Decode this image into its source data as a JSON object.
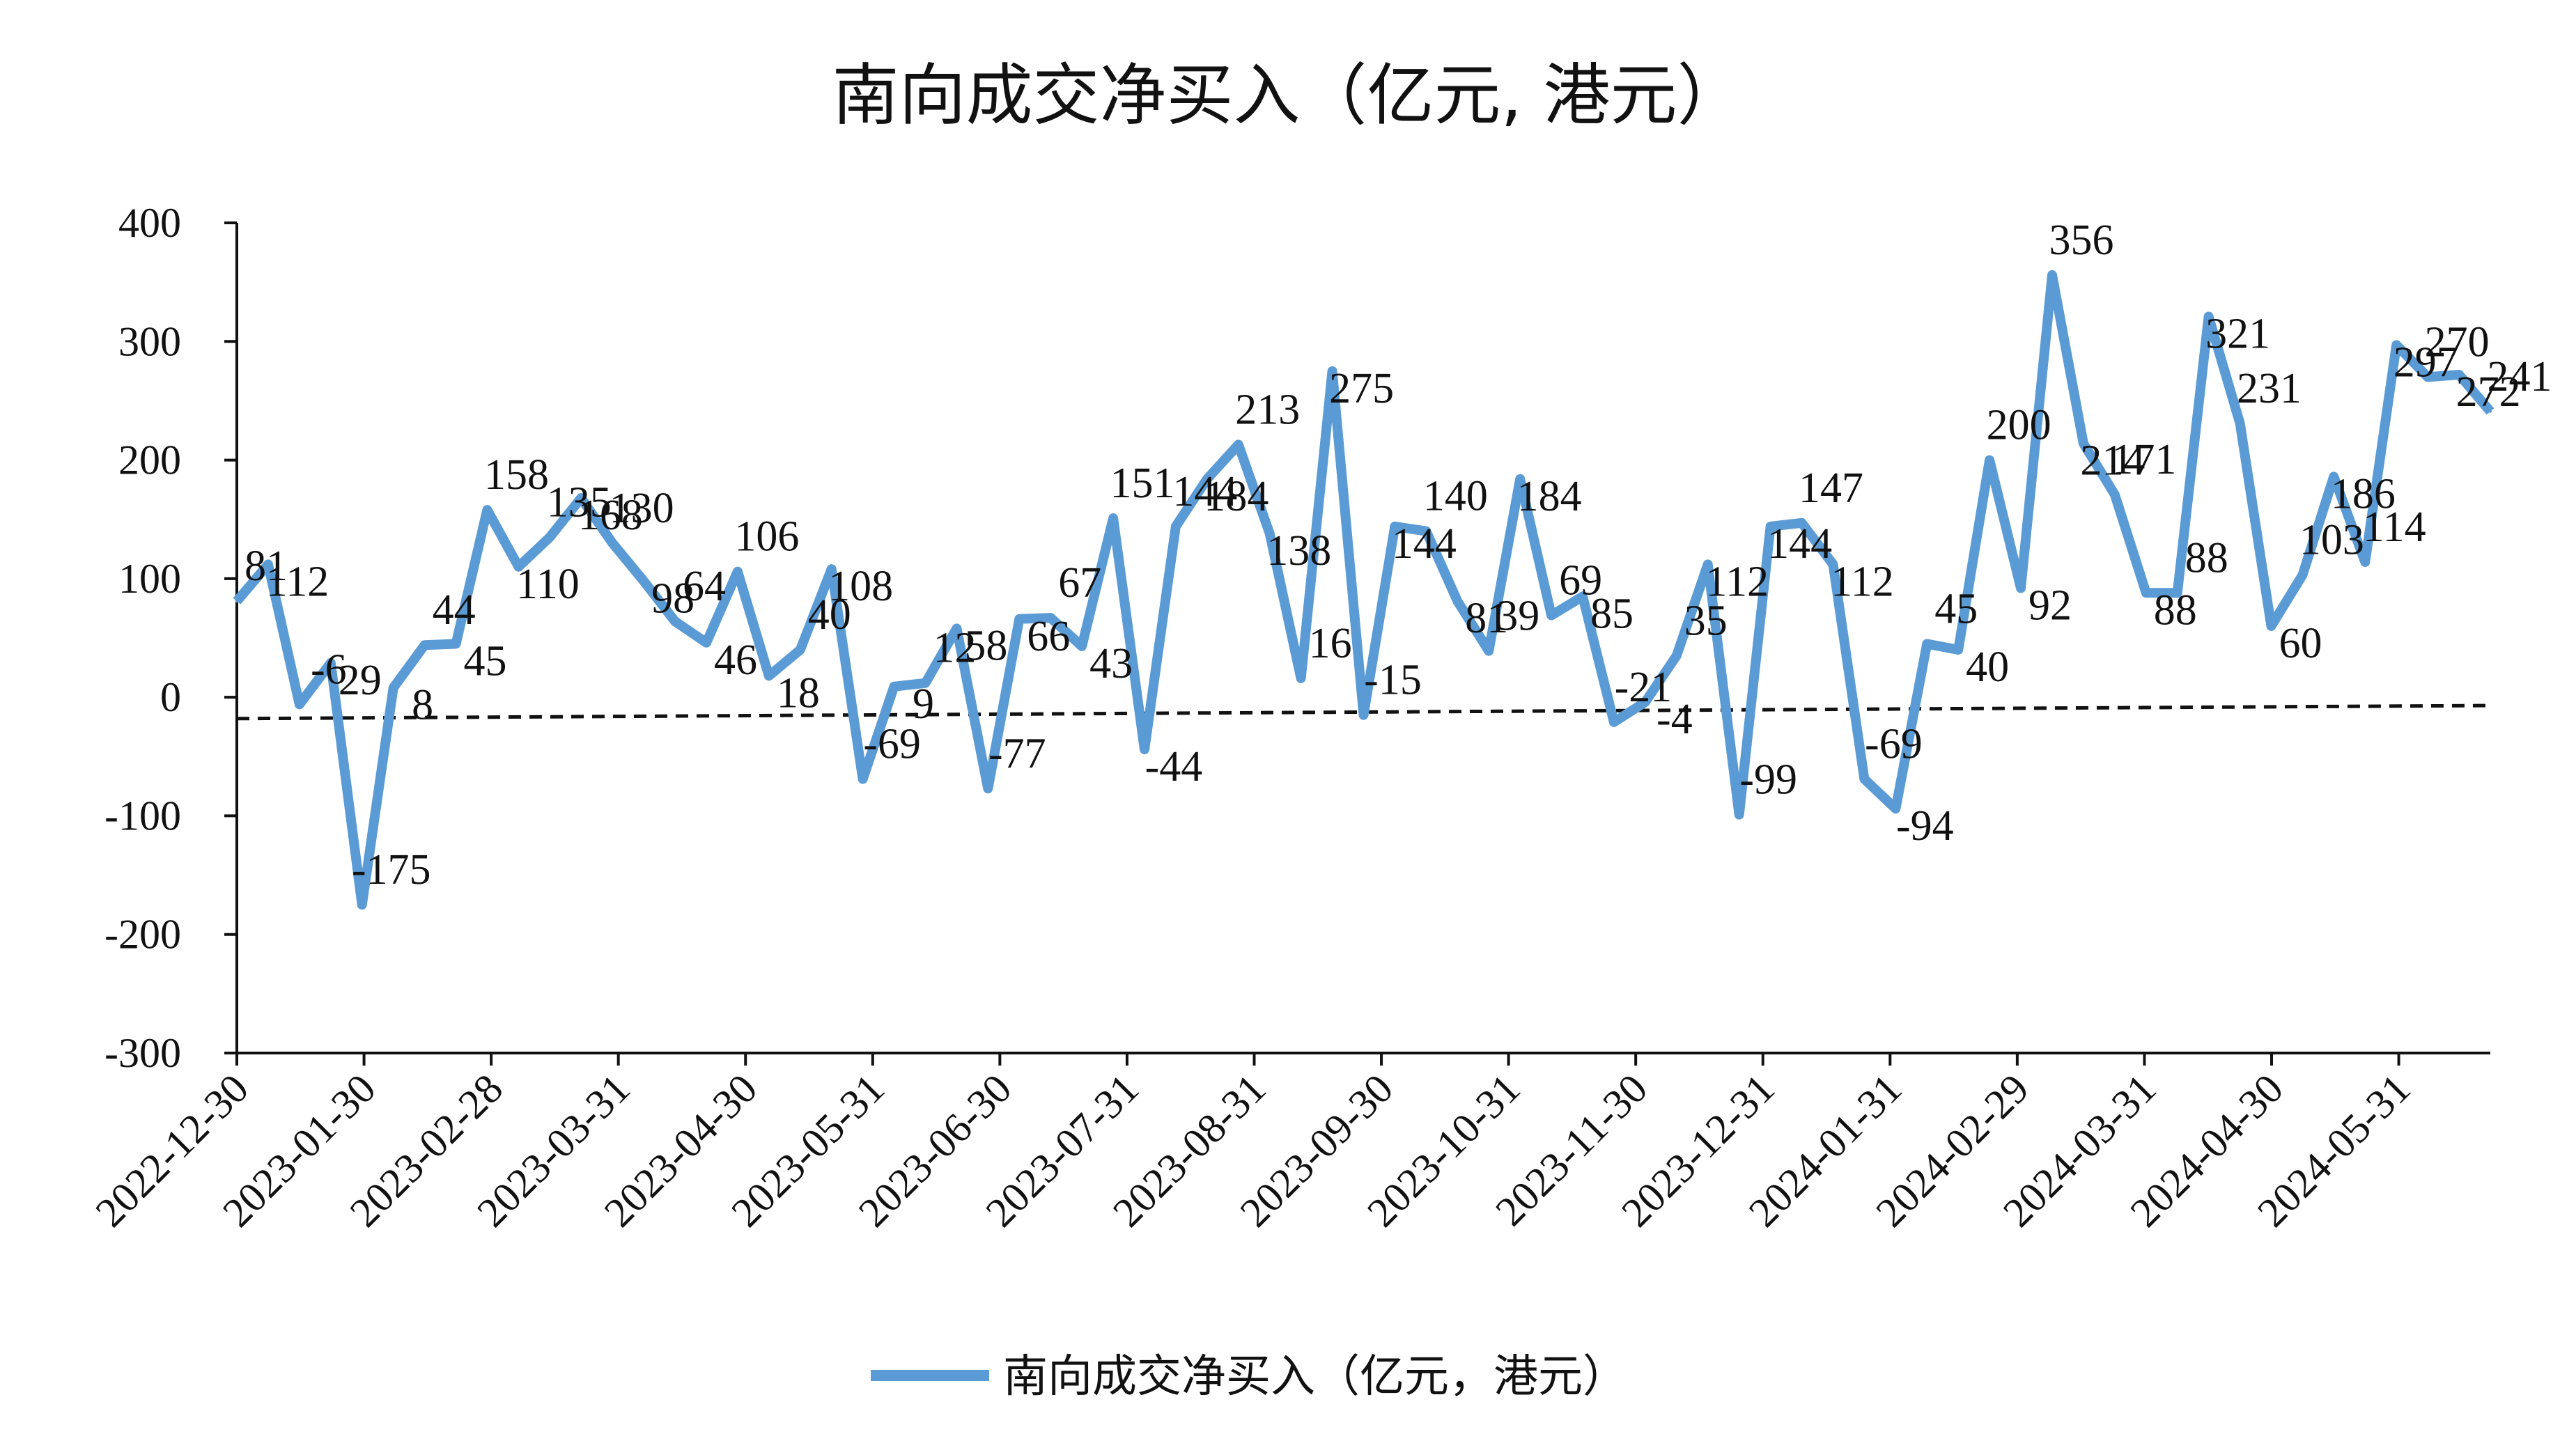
{
  "chart_data": {
    "type": "line",
    "title": "南向成交净买入（亿元, 港元）",
    "legend": [
      "南向成交净买入（亿元，港元）"
    ],
    "legend_position": "bottom",
    "series": [
      {
        "name": "南向成交净买入（亿元，港元）",
        "color": "#5b9bd5",
        "values": [
          81,
          112,
          -6,
          29,
          -175,
          8,
          44,
          45,
          158,
          110,
          135,
          168,
          130,
          98,
          64,
          46,
          106,
          18,
          40,
          108,
          -69,
          9,
          12,
          58,
          -77,
          66,
          67,
          43,
          151,
          -44,
          144,
          184,
          213,
          138,
          16,
          275,
          -15,
          144,
          140,
          81,
          39,
          184,
          69,
          85,
          -21,
          -4,
          35,
          112,
          -99,
          144,
          147,
          112,
          -69,
          -94,
          45,
          40,
          200,
          92,
          356,
          214,
          171,
          88,
          88,
          321,
          231,
          60,
          103,
          186,
          114,
          297,
          270,
          272,
          241
        ]
      }
    ],
    "data_labels": [
      "81",
      "112",
      "-6",
      "29",
      "-175",
      "8",
      "44",
      "45",
      "158",
      "110",
      "135",
      "168",
      "130",
      "98",
      "64",
      "46",
      "106",
      "18",
      "40",
      "108",
      "-69",
      "9",
      "12",
      "58",
      "-77",
      "66",
      "67",
      "43",
      "151",
      "-44",
      "144",
      "184",
      "213",
      "138",
      "16",
      "275",
      "-15",
      "144",
      "140",
      "81",
      "39",
      "184",
      "69",
      "85",
      "-21",
      "-4",
      "35",
      "112",
      "-99",
      "144",
      "147",
      "112",
      "-69",
      "-94",
      "45",
      "40",
      "200",
      "92",
      "356",
      "214",
      "171",
      "88",
      "88",
      "321",
      "231",
      "60",
      "103",
      "186",
      "114",
      "297",
      "270",
      "272",
      "241"
    ],
    "x_tick_labels": [
      "2022-12-30",
      "2023-01-30",
      "2023-02-28",
      "2023-03-31",
      "2023-04-30",
      "2023-05-31",
      "2023-06-30",
      "2023-07-31",
      "2023-08-31",
      "2023-09-30",
      "2023-10-31",
      "2023-11-30",
      "2023-12-31",
      "2024-01-31",
      "2024-02-29",
      "2024-03-31",
      "2024-04-30",
      "2024-05-31"
    ],
    "y_tick_labels": [
      "400",
      "300",
      "200",
      "100",
      "0",
      "-100",
      "-200",
      "-300"
    ],
    "ylim": [
      -300,
      400
    ],
    "trendline": {
      "style": "dashed",
      "start": -18,
      "end": -7
    }
  }
}
